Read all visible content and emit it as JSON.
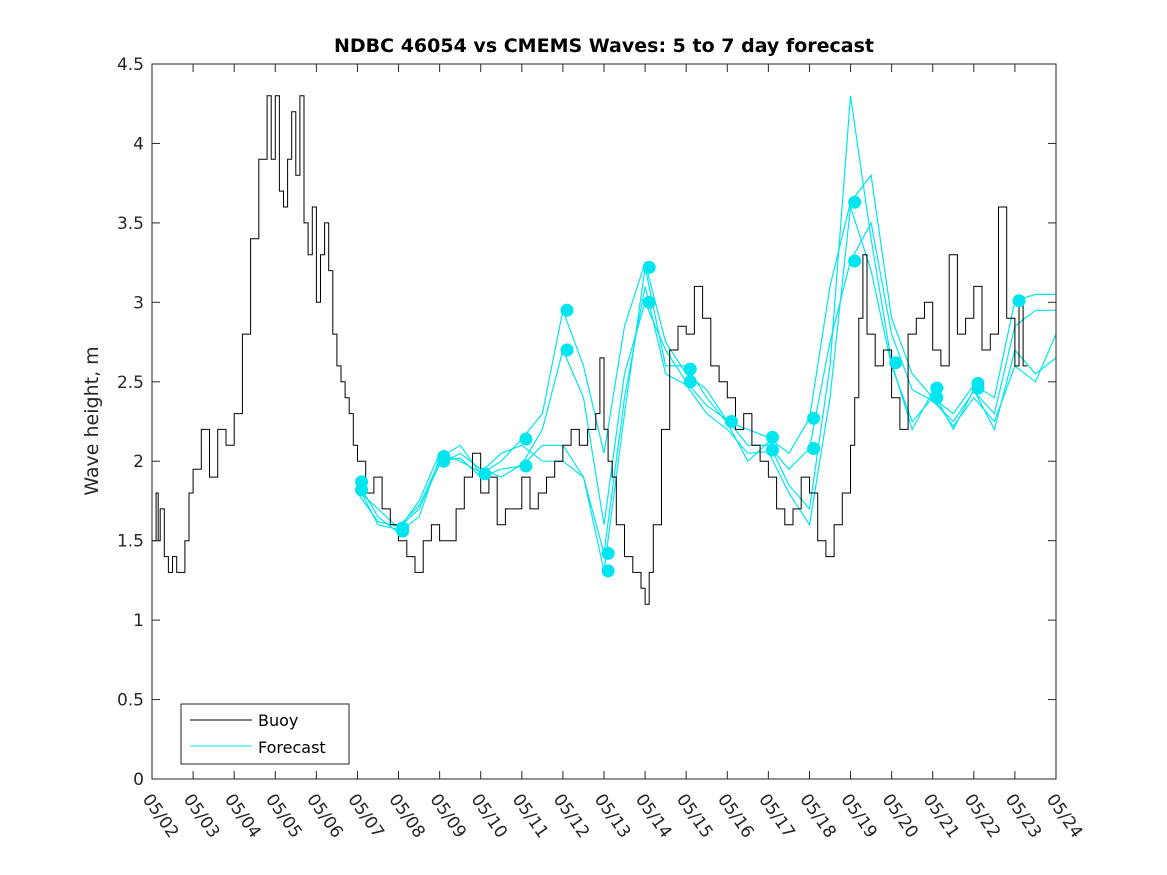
{
  "chart_data": {
    "type": "line",
    "title": "NDBC 46054 vs CMEMS Waves: 5 to 7 day forecast",
    "xlabel": "",
    "ylabel": "Wave height, m",
    "ylim": [
      0,
      4.5
    ],
    "xlim": [
      0,
      22
    ],
    "yticks": [
      "0",
      "0.5",
      "1",
      "1.5",
      "2",
      "2.5",
      "3",
      "3.5",
      "4",
      "4.5"
    ],
    "xticks": [
      "05/02",
      "05/03",
      "05/04",
      "05/05",
      "05/06",
      "05/07",
      "05/08",
      "05/09",
      "05/10",
      "05/11",
      "05/12",
      "05/13",
      "05/14",
      "05/15",
      "05/16",
      "05/17",
      "05/18",
      "05/19",
      "05/20",
      "05/21",
      "05/22",
      "05/23",
      "05/24"
    ],
    "grid": false,
    "legend_position": "bottom-left",
    "colors": {
      "buoy": "#000000",
      "forecast": "#00e5ee"
    },
    "series": [
      {
        "name": "Buoy",
        "x": [
          0.0,
          0.1,
          0.15,
          0.2,
          0.3,
          0.4,
          0.5,
          0.6,
          0.7,
          0.8,
          0.9,
          1.0,
          1.2,
          1.4,
          1.6,
          1.8,
          2.0,
          2.2,
          2.4,
          2.6,
          2.8,
          2.9,
          3.0,
          3.1,
          3.2,
          3.3,
          3.4,
          3.5,
          3.6,
          3.7,
          3.8,
          3.9,
          4.0,
          4.1,
          4.2,
          4.3,
          4.4,
          4.5,
          4.6,
          4.7,
          4.8,
          4.9,
          5.0,
          5.2,
          5.4,
          5.6,
          5.8,
          6.0,
          6.2,
          6.4,
          6.6,
          6.8,
          7.0,
          7.2,
          7.4,
          7.6,
          7.8,
          8.0,
          8.2,
          8.4,
          8.6,
          8.8,
          9.0,
          9.2,
          9.4,
          9.6,
          9.8,
          10.0,
          10.2,
          10.4,
          10.6,
          10.8,
          10.9,
          11.0,
          11.1,
          11.2,
          11.3,
          11.5,
          11.7,
          11.9,
          12.0,
          12.1,
          12.2,
          12.4,
          12.6,
          12.8,
          13.0,
          13.2,
          13.4,
          13.6,
          13.8,
          14.0,
          14.2,
          14.4,
          14.6,
          14.8,
          15.0,
          15.2,
          15.4,
          15.6,
          15.8,
          16.0,
          16.2,
          16.4,
          16.6,
          16.8,
          17.0,
          17.1,
          17.2,
          17.3,
          17.4,
          17.6,
          17.8,
          18.0,
          18.2,
          18.4,
          18.6,
          18.8,
          19.0,
          19.2,
          19.4,
          19.6,
          19.8,
          20.0,
          20.2,
          20.4,
          20.6,
          20.8,
          21.0,
          21.1,
          21.2,
          21.3
        ],
        "y": [
          1.5,
          1.8,
          1.5,
          1.7,
          1.4,
          1.3,
          1.4,
          1.3,
          1.3,
          1.5,
          1.8,
          1.95,
          2.2,
          1.9,
          2.2,
          2.1,
          2.3,
          2.8,
          3.4,
          3.9,
          4.3,
          3.9,
          4.3,
          3.7,
          3.6,
          3.9,
          4.2,
          3.8,
          4.3,
          3.5,
          3.3,
          3.6,
          3.0,
          3.3,
          3.5,
          3.2,
          2.8,
          2.6,
          2.5,
          2.4,
          2.3,
          2.1,
          2.0,
          1.8,
          1.9,
          1.7,
          1.6,
          1.5,
          1.4,
          1.3,
          1.5,
          1.6,
          1.5,
          1.5,
          1.7,
          1.9,
          2.05,
          1.8,
          1.9,
          1.6,
          1.7,
          1.7,
          1.9,
          1.7,
          1.8,
          1.9,
          2.0,
          2.1,
          2.2,
          2.1,
          2.2,
          2.3,
          2.65,
          2.2,
          2.0,
          1.9,
          1.6,
          1.4,
          1.3,
          1.2,
          1.1,
          1.3,
          1.6,
          2.2,
          2.7,
          2.85,
          2.8,
          3.1,
          2.9,
          2.6,
          2.5,
          2.4,
          2.2,
          2.3,
          2.1,
          2.0,
          1.9,
          1.7,
          1.6,
          1.7,
          1.9,
          1.8,
          1.5,
          1.4,
          1.6,
          1.8,
          2.1,
          2.4,
          2.9,
          3.3,
          2.8,
          2.6,
          2.7,
          2.4,
          2.2,
          2.8,
          2.9,
          3.0,
          2.7,
          2.6,
          3.3,
          2.8,
          2.9,
          3.1,
          2.7,
          2.8,
          3.6,
          2.9,
          2.6,
          3.0,
          2.6,
          2.6
        ]
      },
      {
        "name": "Forecast",
        "runs": [
          {
            "x": [
              5.0,
              5.5,
              6.0,
              6.5,
              7.0,
              7.5,
              8.0,
              8.5,
              9.0,
              9.5,
              10.0,
              10.5,
              11.0,
              11.5,
              12.0,
              12.5,
              13.0,
              13.5,
              14.0,
              14.5,
              15.0,
              15.5,
              16.0,
              16.5,
              17.0,
              17.5,
              18.0,
              18.5,
              19.0,
              19.5,
              20.0,
              20.5,
              21.0,
              21.5,
              22.0
            ],
            "y": [
              1.87,
              1.65,
              1.55,
              1.65,
              2.02,
              2.1,
              1.92,
              2.0,
              2.14,
              2.3,
              2.95,
              2.6,
              2.05,
              2.85,
              3.25,
              2.75,
              2.55,
              2.45,
              2.25,
              2.2,
              2.15,
              2.05,
              2.27,
              3.1,
              3.63,
              3.8,
              2.9,
              2.55,
              2.4,
              2.3,
              2.48,
              2.4,
              3.01,
              3.05,
              3.05
            ]
          },
          {
            "x": [
              5.0,
              5.5,
              6.0,
              6.5,
              7.0,
              7.5,
              8.0,
              8.5,
              9.0,
              9.5,
              10.0,
              10.5,
              11.0,
              11.5,
              12.0,
              12.5,
              13.0,
              13.5,
              14.0,
              14.5,
              15.0,
              15.5,
              16.0,
              16.5,
              17.0,
              17.5,
              18.0,
              18.5,
              19.0,
              19.5,
              20.0,
              20.5,
              21.0,
              21.5,
              22.0
            ],
            "y": [
              1.82,
              1.7,
              1.58,
              1.7,
              1.98,
              2.05,
              1.95,
              1.9,
              1.98,
              2.2,
              2.7,
              2.4,
              1.6,
              2.55,
              3.0,
              2.7,
              2.5,
              2.35,
              2.26,
              2.1,
              2.1,
              1.95,
              2.08,
              2.75,
              3.26,
              3.5,
              2.8,
              2.45,
              2.38,
              2.25,
              2.44,
              2.3,
              2.85,
              2.95,
              2.95
            ]
          },
          {
            "x": [
              5.0,
              5.5,
              6.0,
              6.5,
              7.0,
              7.5,
              8.0,
              8.5,
              9.0,
              9.5,
              10.0,
              10.5,
              11.0,
              11.5,
              12.0,
              12.5,
              13.0,
              13.5,
              14.0,
              14.5,
              15.0,
              15.5,
              16.0,
              16.5,
              17.0,
              17.5,
              18.0,
              18.5,
              19.0,
              19.5,
              20.0,
              20.5,
              21.0,
              21.5,
              22.0
            ],
            "y": [
              1.85,
              1.6,
              1.57,
              1.75,
              2.05,
              2.0,
              1.93,
              2.05,
              2.1,
              2.0,
              2.0,
              1.9,
              1.31,
              2.3,
              3.22,
              2.6,
              2.6,
              2.4,
              2.24,
              2.0,
              2.12,
              1.85,
              1.7,
              2.6,
              4.3,
              3.4,
              2.62,
              2.2,
              2.44,
              2.2,
              2.45,
              2.2,
              2.7,
              2.55,
              2.65
            ]
          },
          {
            "x": [
              5.0,
              5.5,
              6.0,
              6.5,
              7.0,
              7.5,
              8.0,
              8.5,
              9.0,
              9.5,
              10.0,
              10.5,
              11.0,
              11.5,
              12.0,
              12.5,
              13.0,
              13.5,
              14.0,
              14.5,
              15.0,
              15.5,
              16.0,
              16.5,
              17.0,
              17.5,
              18.0,
              18.5,
              19.0,
              19.5,
              20.0,
              20.5,
              21.0,
              21.5,
              22.0
            ],
            "y": [
              1.8,
              1.62,
              1.59,
              1.72,
              2.0,
              2.02,
              1.9,
              1.95,
              1.97,
              2.1,
              2.1,
              1.9,
              1.42,
              2.4,
              3.1,
              2.55,
              2.48,
              2.3,
              2.2,
              2.05,
              2.06,
              1.8,
              1.6,
              2.4,
              3.6,
              3.2,
              2.6,
              2.25,
              2.4,
              2.22,
              2.4,
              2.25,
              2.6,
              2.5,
              2.8
            ]
          }
        ],
        "markers": [
          {
            "x": 5.1,
            "y": 1.87
          },
          {
            "x": 5.1,
            "y": 1.82
          },
          {
            "x": 6.1,
            "y": 1.58
          },
          {
            "x": 6.1,
            "y": 1.56
          },
          {
            "x": 7.1,
            "y": 2.03
          },
          {
            "x": 7.1,
            "y": 2.0
          },
          {
            "x": 8.1,
            "y": 1.92
          },
          {
            "x": 9.1,
            "y": 2.14
          },
          {
            "x": 9.1,
            "y": 1.97
          },
          {
            "x": 10.1,
            "y": 2.95
          },
          {
            "x": 10.1,
            "y": 2.7
          },
          {
            "x": 11.1,
            "y": 1.42
          },
          {
            "x": 11.1,
            "y": 1.31
          },
          {
            "x": 12.1,
            "y": 3.22
          },
          {
            "x": 12.1,
            "y": 3.0
          },
          {
            "x": 13.1,
            "y": 2.58
          },
          {
            "x": 13.1,
            "y": 2.5
          },
          {
            "x": 14.1,
            "y": 2.25
          },
          {
            "x": 15.1,
            "y": 2.15
          },
          {
            "x": 15.1,
            "y": 2.07
          },
          {
            "x": 16.1,
            "y": 2.27
          },
          {
            "x": 16.1,
            "y": 2.08
          },
          {
            "x": 17.1,
            "y": 3.63
          },
          {
            "x": 17.1,
            "y": 3.26
          },
          {
            "x": 18.1,
            "y": 2.62
          },
          {
            "x": 19.1,
            "y": 2.46
          },
          {
            "x": 19.1,
            "y": 2.4
          },
          {
            "x": 20.1,
            "y": 2.49
          },
          {
            "x": 20.1,
            "y": 2.46
          },
          {
            "x": 21.1,
            "y": 3.01
          }
        ]
      }
    ],
    "legend": {
      "buoy_label": "Buoy",
      "forecast_label": "Forecast"
    }
  }
}
